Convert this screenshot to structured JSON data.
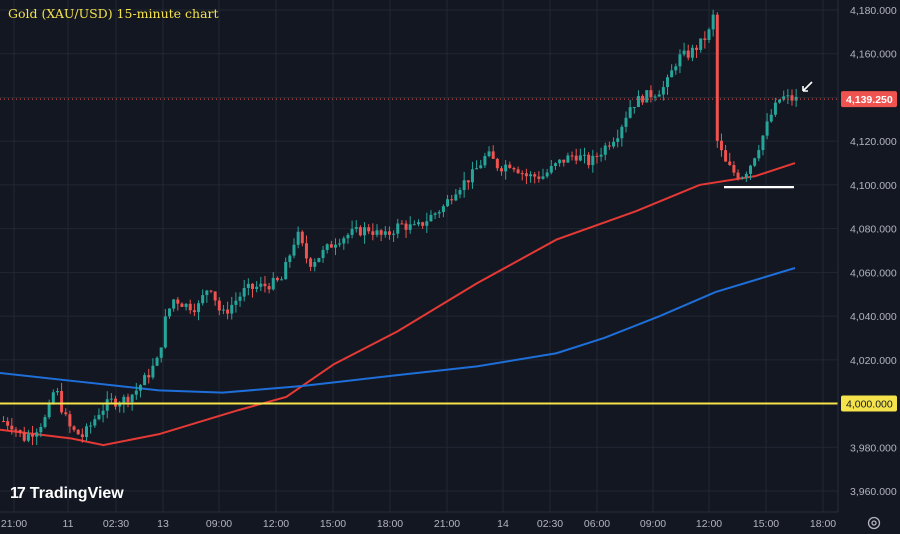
{
  "title": "Gold (XAU/USD) 15-minute chart",
  "logo_mark": "17",
  "logo_text": "TradingView",
  "settings_icon": "gear-icon",
  "colors": {
    "background": "#131722",
    "grid": "#232732",
    "up": "#26a69a",
    "down": "#ef5350",
    "ema_fast": "#e53935",
    "ema_slow": "#1e6fd9",
    "level_line": "#f5e34b",
    "last_price_badge": "#ef5350",
    "level_badge": "#f5e34b"
  },
  "chart_data": {
    "type": "candlestick",
    "title": "Gold (XAU/USD) 15-minute chart",
    "x_ticks": [
      "21:00",
      "11",
      "02:30",
      "13",
      "09:00",
      "12:00",
      "15:00",
      "18:00",
      "21:00",
      "14",
      "02:30",
      "06:00",
      "09:00",
      "12:00",
      "15:00",
      "18:00"
    ],
    "y_ticks": [
      "4,180.000",
      "4,160.000",
      "4,140.000",
      "4,120.000",
      "4,100.000",
      "4,080.000",
      "4,060.000",
      "4,040.000",
      "4,020.000",
      "4,000.000",
      "3,980.000",
      "3,960.000"
    ],
    "y_tick_values": [
      4180,
      4160,
      4140,
      4120,
      4100,
      4080,
      4060,
      4040,
      4020,
      4000,
      3980,
      3960
    ],
    "ylim": [
      3955,
      4188
    ],
    "last_price": 4139.25,
    "last_price_label": "4,139.250",
    "horizontal_level": 4000,
    "horizontal_level_label": "4,000.000",
    "support_level": 4099,
    "grid": true,
    "close_path": [
      [
        0,
        3992
      ],
      [
        0.012,
        3990
      ],
      [
        0.025,
        3984
      ],
      [
        0.04,
        3988
      ],
      [
        0.055,
        3994
      ],
      [
        0.065,
        4008
      ],
      [
        0.075,
        3996
      ],
      [
        0.085,
        3988
      ],
      [
        0.1,
        3985
      ],
      [
        0.11,
        3990
      ],
      [
        0.12,
        3996
      ],
      [
        0.135,
        4001
      ],
      [
        0.148,
        4001
      ],
      [
        0.165,
        4005
      ],
      [
        0.18,
        4012
      ],
      [
        0.195,
        4020
      ],
      [
        0.205,
        4040
      ],
      [
        0.215,
        4048
      ],
      [
        0.23,
        4045
      ],
      [
        0.245,
        4044
      ],
      [
        0.26,
        4055
      ],
      [
        0.275,
        4040
      ],
      [
        0.29,
        4046
      ],
      [
        0.305,
        4052
      ],
      [
        0.33,
        4054
      ],
      [
        0.35,
        4056
      ],
      [
        0.37,
        4078
      ],
      [
        0.385,
        4064
      ],
      [
        0.4,
        4068
      ],
      [
        0.42,
        4075
      ],
      [
        0.44,
        4078
      ],
      [
        0.46,
        4080
      ],
      [
        0.48,
        4076
      ],
      [
        0.5,
        4082
      ],
      [
        0.52,
        4080
      ],
      [
        0.54,
        4086
      ],
      [
        0.555,
        4090
      ],
      [
        0.57,
        4098
      ],
      [
        0.59,
        4104
      ],
      [
        0.61,
        4114
      ],
      [
        0.625,
        4108
      ],
      [
        0.64,
        4110
      ],
      [
        0.66,
        4104
      ],
      [
        0.68,
        4104
      ],
      [
        0.7,
        4110
      ],
      [
        0.72,
        4114
      ],
      [
        0.74,
        4110
      ],
      [
        0.76,
        4118
      ],
      [
        0.775,
        4124
      ],
      [
        0.79,
        4136
      ],
      [
        0.805,
        4140
      ],
      [
        0.82,
        4142
      ],
      [
        0.835,
        4145
      ],
      [
        0.85,
        4158
      ],
      [
        0.865,
        4160
      ],
      [
        0.88,
        4165
      ],
      [
        0.89,
        4170
      ],
      [
        0.895,
        4177
      ],
      [
        0.9,
        4120
      ],
      [
        0.91,
        4110
      ],
      [
        0.92,
        4106
      ],
      [
        0.93,
        4104
      ],
      [
        0.94,
        4108
      ],
      [
        0.955,
        4120
      ],
      [
        0.968,
        4132
      ],
      [
        0.98,
        4140
      ],
      [
        1.0,
        4139
      ]
    ],
    "series": [
      {
        "name": "",
        "color": "#e53935",
        "points": [
          [
            0,
            3988
          ],
          [
            0.09,
            3984
          ],
          [
            0.13,
            3981
          ],
          [
            0.2,
            3986
          ],
          [
            0.3,
            3997
          ],
          [
            0.36,
            4003
          ],
          [
            0.42,
            4018
          ],
          [
            0.5,
            4033
          ],
          [
            0.6,
            4055
          ],
          [
            0.7,
            4075
          ],
          [
            0.8,
            4088
          ],
          [
            0.88,
            4100
          ],
          [
            0.95,
            4104
          ],
          [
            1.0,
            4110
          ]
        ]
      },
      {
        "name": "",
        "color": "#1e6fd9",
        "points": [
          [
            0,
            4014
          ],
          [
            0.1,
            4010
          ],
          [
            0.2,
            4006
          ],
          [
            0.28,
            4005
          ],
          [
            0.38,
            4008
          ],
          [
            0.5,
            4013
          ],
          [
            0.6,
            4017
          ],
          [
            0.7,
            4023
          ],
          [
            0.76,
            4030
          ],
          [
            0.83,
            4040
          ],
          [
            0.9,
            4051
          ],
          [
            1.0,
            4062
          ]
        ]
      }
    ]
  }
}
